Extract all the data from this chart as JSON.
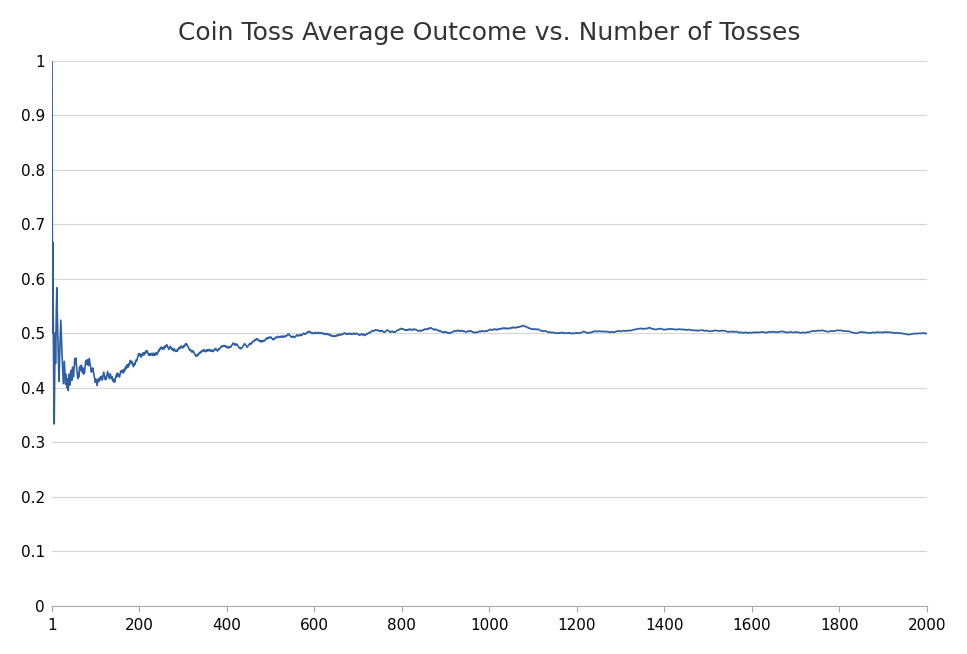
{
  "title": "Coin Toss Average Outcome vs. Number of Tosses",
  "title_fontsize": 18,
  "line_color": "#2e5fa3",
  "line_width": 1.2,
  "xlim": [
    1,
    2000
  ],
  "ylim": [
    0,
    1.0
  ],
  "yticks": [
    0,
    0.1,
    0.2,
    0.3,
    0.4,
    0.5,
    0.6,
    0.7,
    0.8,
    0.9,
    1
  ],
  "xticks": [
    1,
    200,
    400,
    600,
    800,
    1000,
    1200,
    1400,
    1600,
    1800,
    2000
  ],
  "xticklabels": [
    "1",
    "200",
    "400",
    "600",
    "800",
    "1000",
    "1200",
    "1400",
    "1600",
    "1800",
    "2000"
  ],
  "background_color": "#ffffff",
  "grid_color": "#cccccc",
  "grid_alpha": 0.8,
  "n_tosses": 2000
}
